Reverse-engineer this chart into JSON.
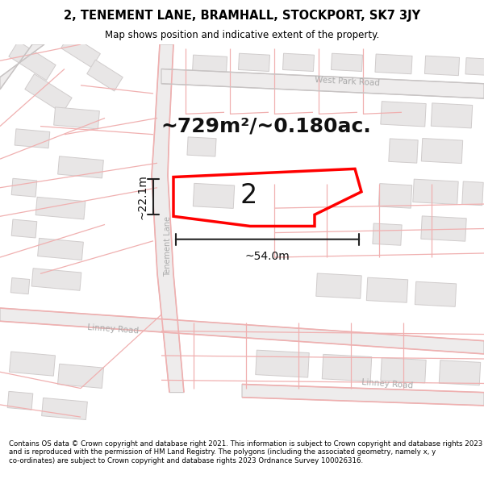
{
  "title_line1": "2, TENEMENT LANE, BRAMHALL, STOCKPORT, SK7 3JY",
  "title_line2": "Map shows position and indicative extent of the property.",
  "area_text": "~729m²/~0.180ac.",
  "label_number": "2",
  "dim_horizontal": "~54.0m",
  "dim_vertical": "~22.1m",
  "road_label_tenement": "Tenement Lane",
  "road_label_linney1": "Linney Road",
  "road_label_linney2": "Linney Road",
  "road_label_west_park": "West Park Road",
  "footer_text": "Contains OS data © Crown copyright and database right 2021. This information is subject to Crown copyright and database rights 2023 and is reproduced with the permission of HM Land Registry. The polygons (including the associated geometry, namely x, y co-ordinates) are subject to Crown copyright and database rights 2023 Ordnance Survey 100026316.",
  "bg_color": "#ffffff",
  "map_bg": "#f7f4f4",
  "road_pink": "#f0b0b0",
  "property_color": "#ff0000",
  "building_fill": "#e8e6e6",
  "building_stroke": "#d0cccc",
  "road_gray": "#c8c4c4",
  "dim_color": "#222222",
  "text_color": "#000000",
  "title_bg": "#ffffff",
  "footer_bg": "#ffffff",
  "road_label_color": "#aaaaaa",
  "area_text_fontsize": 18,
  "label_number_fontsize": 24
}
